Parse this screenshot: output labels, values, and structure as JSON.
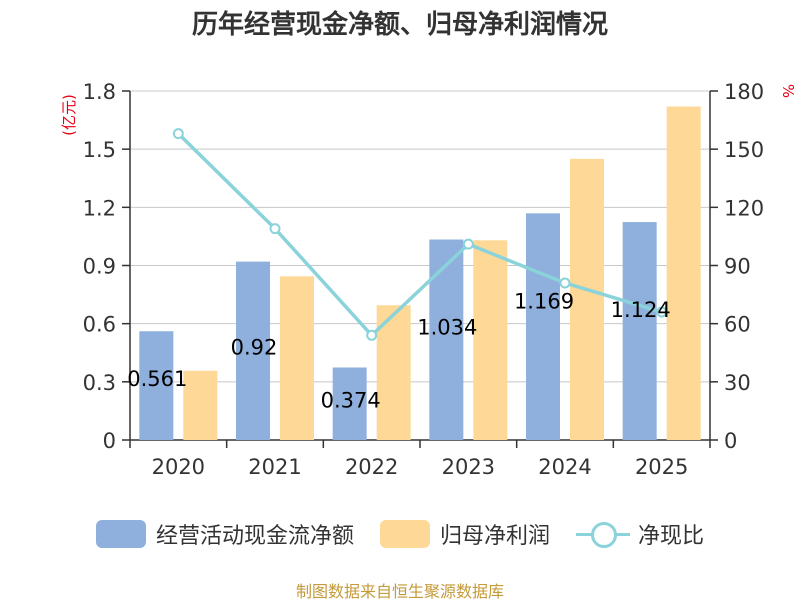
{
  "chart_data": {
    "type": "bar",
    "title": "历年经营现金净额、归母净利润情况",
    "categories": [
      "2020",
      "2021",
      "2022",
      "2023",
      "2024",
      "2025"
    ],
    "left_axis": {
      "unit": "(亿元)",
      "ylim": [
        0,
        1.8
      ],
      "ticks": [
        "0",
        "0.3",
        "0.6",
        "0.9",
        "1.2",
        "1.5",
        "1.8"
      ]
    },
    "right_axis": {
      "unit": "%",
      "ylim": [
        0,
        180
      ],
      "ticks": [
        "0",
        "30",
        "60",
        "90",
        "120",
        "150",
        "180"
      ]
    },
    "series": [
      {
        "name": "经营活动现金流净额",
        "type": "bar",
        "axis": "left",
        "color": "#8fb0dc",
        "values": [
          0.561,
          0.92,
          0.374,
          1.034,
          1.169,
          1.124
        ],
        "labels": [
          "0.561",
          "0.92",
          "0.374",
          "1.034",
          "1.169",
          "1.124"
        ]
      },
      {
        "name": "归母净利润",
        "type": "bar",
        "axis": "left",
        "color": "#fdd896",
        "values": [
          0.357,
          0.844,
          0.695,
          1.03,
          1.45,
          1.72
        ]
      },
      {
        "name": "净现比",
        "type": "line",
        "axis": "right",
        "color": "#8ad3da",
        "values": [
          158,
          109,
          54,
          101,
          81,
          66
        ]
      }
    ],
    "legend_position": "bottom",
    "grid": true
  },
  "source_text": "制图数据来自恒生聚源数据库"
}
